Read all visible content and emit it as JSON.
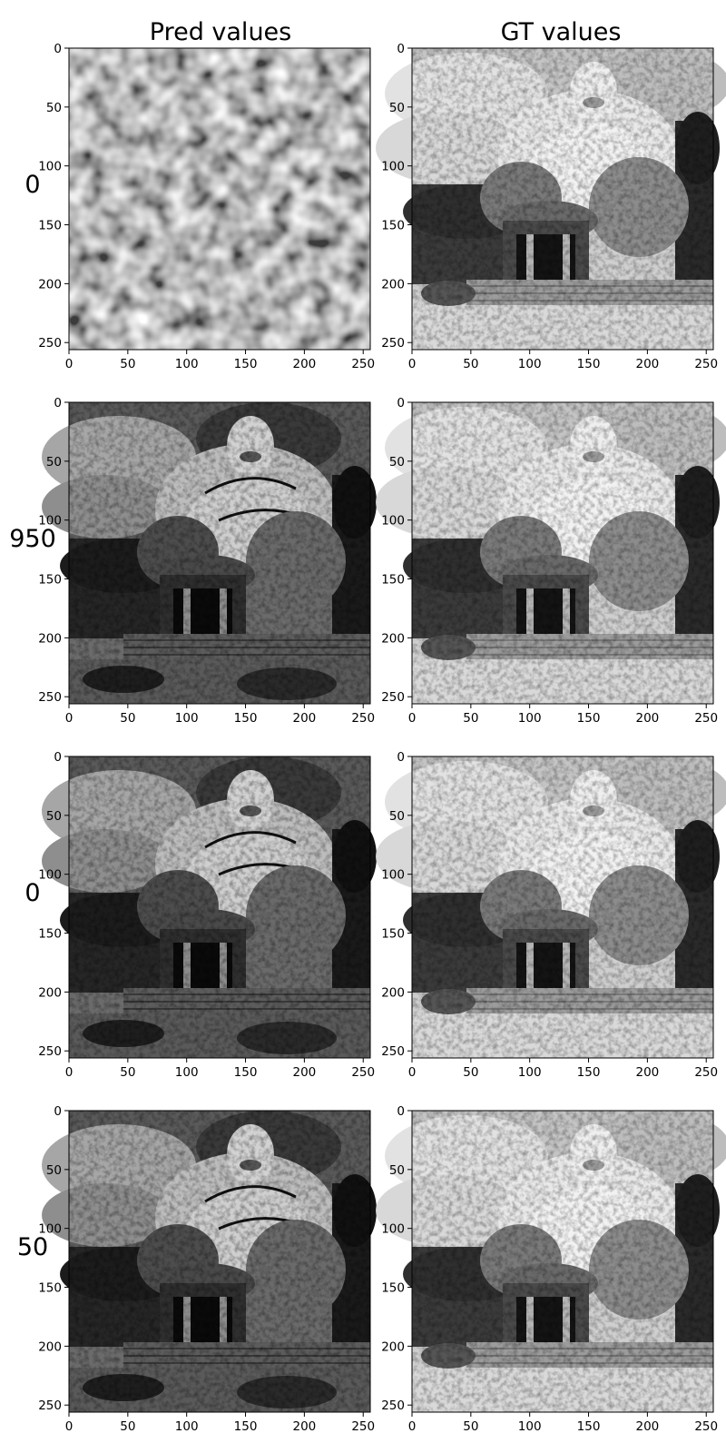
{
  "chart_data": {
    "type": "image-grid",
    "columns": [
      "Pred values",
      "GT values"
    ],
    "rows": [
      {
        "label": "0",
        "pred_image": "noise",
        "gt_image": "buddha-statue"
      },
      {
        "label": "950",
        "pred_image": "buddha-statue-reconstruction",
        "gt_image": "buddha-statue"
      },
      {
        "label": "0",
        "pred_image": "buddha-statue-reconstruction",
        "gt_image": "buddha-statue"
      },
      {
        "label": "50",
        "pred_image": "buddha-statue-reconstruction",
        "gt_image": "buddha-statue"
      }
    ],
    "axes": {
      "xlim": [
        0,
        256
      ],
      "ylim": [
        256,
        0
      ],
      "xticks": [
        0,
        50,
        100,
        150,
        200,
        250
      ],
      "yticks": [
        0,
        50,
        100,
        150,
        200,
        250
      ],
      "colormap": "gray"
    }
  }
}
